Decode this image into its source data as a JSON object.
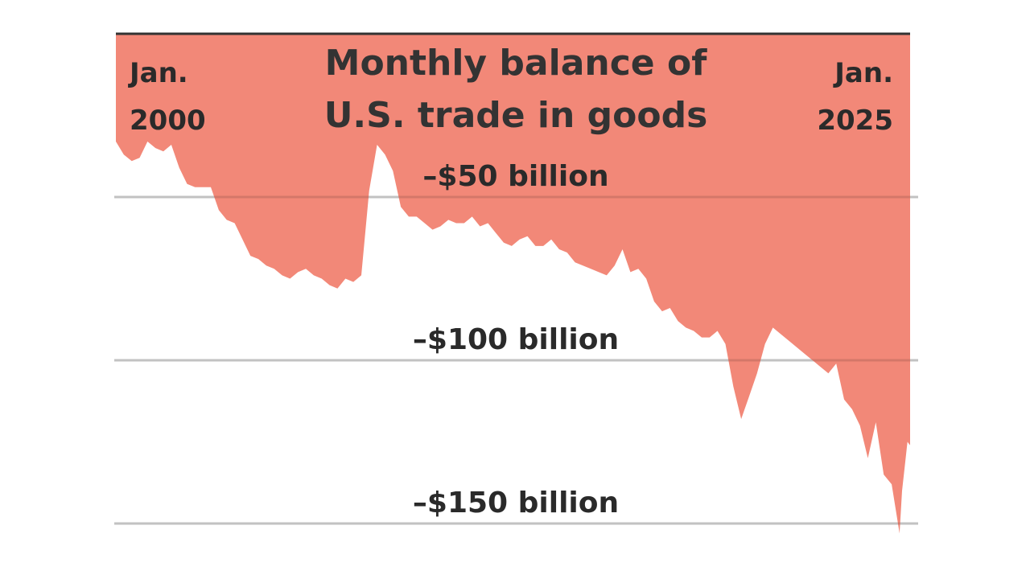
{
  "chart_data": {
    "type": "area",
    "title_lines": [
      "Monthly balance of",
      "U.S. trade in goods"
    ],
    "start_label": [
      "Jan.",
      "2000"
    ],
    "end_label": [
      "Jan.",
      "2025"
    ],
    "y_ticks": [
      {
        "value": -50,
        "label": "–$50 billion"
      },
      {
        "value": -100,
        "label": "–$100 billion"
      },
      {
        "value": -150,
        "label": "–$150 billion"
      }
    ],
    "ylim": [
      -153,
      0
    ],
    "xlim": [
      2000.0,
      2025.083
    ],
    "grid": true,
    "fill_color": "#F28878",
    "baseline_color": "#333333",
    "grid_color": "#dddddd",
    "series": [
      {
        "x": [
          2000.0,
          2000.25,
          2000.5,
          2000.75,
          2001.0,
          2001.25,
          2001.5,
          2001.75,
          2002.0,
          2002.25,
          2002.5,
          2002.75,
          2003.0,
          2003.25,
          2003.5,
          2003.75,
          2004.0,
          2004.25,
          2004.5,
          2004.75,
          2005.0,
          2005.25,
          2005.5,
          2005.75,
          2006.0,
          2006.25,
          2006.5,
          2006.75,
          2007.0,
          2007.25,
          2007.5,
          2007.75,
          2008.0,
          2008.25,
          2008.5,
          2008.75,
          2009.0,
          2009.25,
          2009.5,
          2009.75,
          2010.0,
          2010.25,
          2010.5,
          2010.75,
          2011.0,
          2011.25,
          2011.5,
          2011.75,
          2012.0,
          2012.25,
          2012.5,
          2012.75,
          2013.0,
          2013.25,
          2013.5,
          2013.75,
          2014.0,
          2014.25,
          2014.5,
          2014.75,
          2015.0,
          2015.25,
          2015.5,
          2015.75,
          2016.0,
          2016.25,
          2016.5,
          2016.75,
          2017.0,
          2017.25,
          2017.5,
          2017.75,
          2018.0,
          2018.25,
          2018.5,
          2018.75,
          2019.0,
          2019.25,
          2019.5,
          2019.75,
          2020.0,
          2020.25,
          2020.5,
          2020.75,
          2021.0,
          2021.25,
          2021.5,
          2021.75,
          2022.0,
          2022.25,
          2022.5,
          2022.75,
          2023.0,
          2023.25,
          2023.5,
          2023.75,
          2024.0,
          2024.25,
          2024.5,
          2024.75,
          2024.83,
          2024.92,
          2025.0,
          2025.083
        ],
        "values": [
          -33,
          -37,
          -39,
          -38,
          -33,
          -35,
          -36,
          -34,
          -41,
          -46,
          -47,
          -47,
          -47,
          -54,
          -57,
          -58,
          -63,
          -68,
          -69,
          -71,
          -72,
          -74,
          -75,
          -73,
          -72,
          -74,
          -75,
          -77,
          -78,
          -75,
          -76,
          -74,
          -48,
          -34,
          -37,
          -42,
          -53,
          -56,
          -56,
          -58,
          -60,
          -59,
          -57,
          -58,
          -58,
          -56,
          -59,
          -58,
          -61,
          -64,
          -65,
          -63,
          -62,
          -65,
          -65,
          -63,
          -66,
          -67,
          -70,
          -71,
          -72,
          -73,
          -74,
          -71,
          -66,
          -73,
          -72,
          -75,
          -82,
          -85,
          -84,
          -88,
          -90,
          -91,
          -93,
          -93,
          -91,
          -95,
          -108,
          -118,
          -111,
          -104,
          -95,
          -90,
          -92,
          -94,
          -96,
          -98,
          -100,
          -102,
          -104,
          -101,
          -112,
          -115,
          -120,
          -130,
          -119,
          -135,
          -138,
          -153,
          -140,
          -132,
          -125,
          -126
        ]
      }
    ]
  }
}
